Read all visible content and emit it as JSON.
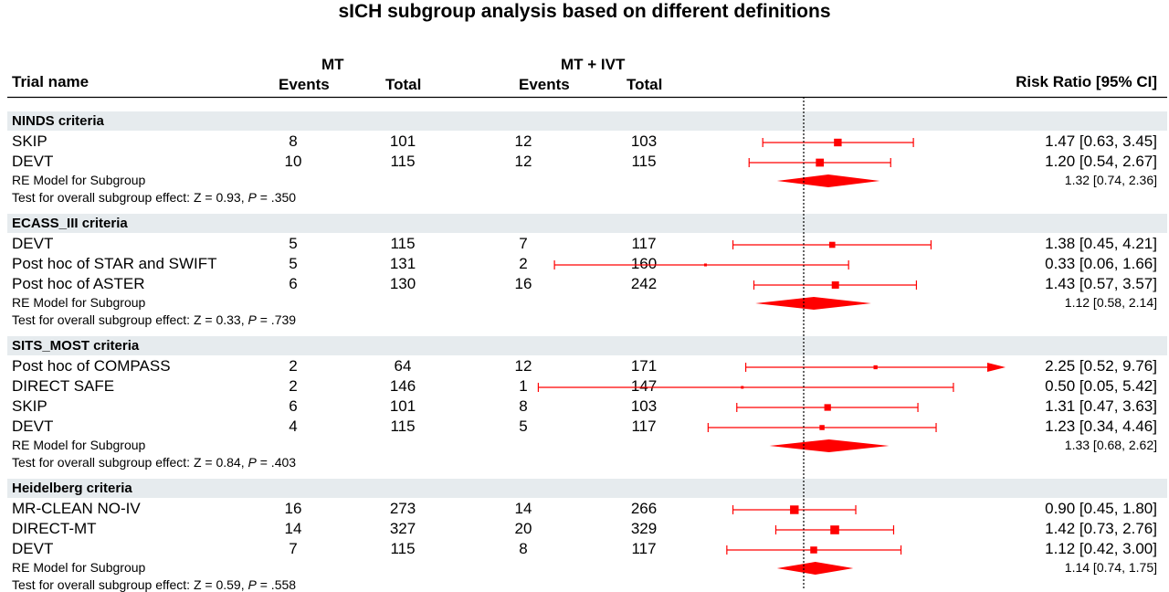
{
  "chart_data": {
    "type": "forest",
    "title": "sICH subgroup analysis based on different definitions",
    "columns": {
      "trial_name": "Trial name",
      "mt_group": "MT",
      "mt_ivt_group": "MT + IVT",
      "events": "Events",
      "total": "Total",
      "effect": "Risk Ratio [95% CI]"
    },
    "reference_line": 1,
    "xlim": [
      0.05,
      9.76
    ],
    "groups": [
      {
        "label": "NINDS criteria",
        "studies": [
          {
            "name": "SKIP",
            "mt_events": "8",
            "mt_total": "101",
            "ivt_events": "12",
            "ivt_total": "103",
            "rr": 1.47,
            "lo": 0.63,
            "hi": 3.45,
            "ci_text": "1.47 [0.63, 3.45]"
          },
          {
            "name": "DEVT",
            "mt_events": "10",
            "mt_total": "115",
            "ivt_events": "12",
            "ivt_total": "115",
            "rr": 1.2,
            "lo": 0.54,
            "hi": 2.67,
            "ci_text": "1.20 [0.54, 2.67]"
          }
        ],
        "re_label": "RE Model for Subgroup",
        "re": {
          "rr": 1.32,
          "lo": 0.74,
          "hi": 2.36,
          "ci_text": "1.32 [0.74, 2.36]"
        },
        "test_prefix": "Test for overall subgroup effect: Z = 0.93, ",
        "p_label": "P",
        "p_value": " = .350"
      },
      {
        "label": "ECASS_III criteria",
        "studies": [
          {
            "name": "DEVT",
            "mt_events": "5",
            "mt_total": "115",
            "ivt_events": "7",
            "ivt_total": "117",
            "rr": 1.38,
            "lo": 0.45,
            "hi": 4.21,
            "ci_text": "1.38 [0.45, 4.21]"
          },
          {
            "name": "Post hoc of STAR and SWIFT",
            "mt_events": "5",
            "mt_total": "131",
            "ivt_events": "2",
            "ivt_total": "160",
            "rr": 0.33,
            "lo": 0.06,
            "hi": 1.66,
            "ci_text": "0.33 [0.06, 1.66]"
          },
          {
            "name": "Post hoc of ASTER",
            "mt_events": "6",
            "mt_total": "130",
            "ivt_events": "16",
            "ivt_total": "242",
            "rr": 1.43,
            "lo": 0.57,
            "hi": 3.57,
            "ci_text": "1.43 [0.57, 3.57]"
          }
        ],
        "re_label": "RE Model for Subgroup",
        "re": {
          "rr": 1.12,
          "lo": 0.58,
          "hi": 2.14,
          "ci_text": "1.12 [0.58, 2.14]"
        },
        "test_prefix": "Test for overall subgroup effect: Z = 0.33, ",
        "p_label": "P",
        "p_value": " = .739"
      },
      {
        "label": "SITS_MOST criteria",
        "studies": [
          {
            "name": "Post hoc of COMPASS",
            "mt_events": "2",
            "mt_total": "64",
            "ivt_events": "12",
            "ivt_total": "171",
            "rr": 2.25,
            "lo": 0.52,
            "hi": 9.76,
            "ci_text": "2.25 [0.52, 9.76]",
            "arrow_right": true
          },
          {
            "name": "DIRECT SAFE",
            "mt_events": "2",
            "mt_total": "146",
            "ivt_events": "1",
            "ivt_total": "147",
            "rr": 0.5,
            "lo": 0.05,
            "hi": 5.42,
            "ci_text": "0.50 [0.05, 5.42]"
          },
          {
            "name": "SKIP",
            "mt_events": "6",
            "mt_total": "101",
            "ivt_events": "8",
            "ivt_total": "103",
            "rr": 1.31,
            "lo": 0.47,
            "hi": 3.63,
            "ci_text": "1.31 [0.47, 3.63]"
          },
          {
            "name": "DEVT",
            "mt_events": "4",
            "mt_total": "115",
            "ivt_events": "5",
            "ivt_total": "117",
            "rr": 1.23,
            "lo": 0.34,
            "hi": 4.46,
            "ci_text": "1.23 [0.34, 4.46]"
          }
        ],
        "re_label": "RE Model for Subgroup",
        "re": {
          "rr": 1.33,
          "lo": 0.68,
          "hi": 2.62,
          "ci_text": "1.33 [0.68, 2.62]"
        },
        "test_prefix": "Test for overall subgroup effect: Z = 0.84, ",
        "p_label": "P",
        "p_value": " = .403"
      },
      {
        "label": "Heidelberg criteria",
        "studies": [
          {
            "name": "MR-CLEAN NO-IV",
            "mt_events": "16",
            "mt_total": "273",
            "ivt_events": "14",
            "ivt_total": "266",
            "rr": 0.9,
            "lo": 0.45,
            "hi": 1.8,
            "ci_text": "0.90 [0.45, 1.80]"
          },
          {
            "name": "DIRECT-MT",
            "mt_events": "14",
            "mt_total": "327",
            "ivt_events": "20",
            "ivt_total": "329",
            "rr": 1.42,
            "lo": 0.73,
            "hi": 2.76,
            "ci_text": "1.42 [0.73, 2.76]"
          },
          {
            "name": "DEVT",
            "mt_events": "7",
            "mt_total": "115",
            "ivt_events": "8",
            "ivt_total": "117",
            "rr": 1.12,
            "lo": 0.42,
            "hi": 3.0,
            "ci_text": "1.12 [0.42, 3.00]"
          }
        ],
        "re_label": "RE Model for Subgroup",
        "re": {
          "rr": 1.14,
          "lo": 0.74,
          "hi": 1.75,
          "ci_text": "1.14 [0.74, 1.75]"
        },
        "test_prefix": "Test for overall subgroup effect: Z = 0.59, ",
        "p_label": "P",
        "p_value": " = .558"
      }
    ]
  },
  "colors": {
    "marker": "#ff0000",
    "band": "#e6ebee",
    "reference": "#000000"
  }
}
